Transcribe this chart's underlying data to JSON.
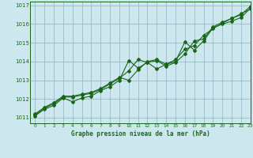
{
  "title": "Graphe pression niveau de la mer (hPa)",
  "bg_color": "#cce8ee",
  "grid_color": "#99bbcc",
  "line_color": "#1a6618",
  "xlim": [
    -0.5,
    23
  ],
  "ylim": [
    1010.7,
    1017.2
  ],
  "xticks": [
    0,
    1,
    2,
    3,
    4,
    5,
    6,
    7,
    8,
    9,
    10,
    11,
    12,
    13,
    14,
    15,
    16,
    17,
    18,
    19,
    20,
    21,
    22,
    23
  ],
  "yticks": [
    1011,
    1012,
    1013,
    1014,
    1015,
    1016,
    1017
  ],
  "series1_x": [
    0,
    1,
    2,
    3,
    4,
    5,
    6,
    7,
    8,
    9,
    10,
    11,
    12,
    13,
    14,
    15,
    16,
    17,
    18,
    19,
    20,
    21,
    22,
    23
  ],
  "series1_y": [
    1011.1,
    1011.45,
    1011.65,
    1012.05,
    1011.85,
    1012.05,
    1012.15,
    1012.45,
    1012.65,
    1013.0,
    1014.05,
    1013.65,
    1013.95,
    1013.6,
    1013.85,
    1014.0,
    1015.05,
    1014.6,
    1015.1,
    1015.8,
    1016.0,
    1016.15,
    1016.35,
    1016.85
  ],
  "series2_x": [
    0,
    1,
    2,
    3,
    4,
    5,
    6,
    7,
    8,
    9,
    10,
    11,
    12,
    13,
    14,
    15,
    16,
    17,
    18,
    19,
    20,
    21,
    22,
    23
  ],
  "series2_y": [
    1011.15,
    1011.5,
    1011.75,
    1012.1,
    1012.1,
    1012.2,
    1012.3,
    1012.5,
    1012.8,
    1013.1,
    1013.5,
    1014.1,
    1013.95,
    1014.05,
    1013.75,
    1013.95,
    1014.4,
    1015.1,
    1015.2,
    1015.85,
    1016.1,
    1016.3,
    1016.55,
    1016.8
  ],
  "series3_x": [
    0,
    1,
    2,
    3,
    4,
    5,
    6,
    7,
    8,
    9,
    10,
    11,
    12,
    13,
    14,
    15,
    16,
    17,
    18,
    19,
    20,
    21,
    22,
    23
  ],
  "series3_y": [
    1011.2,
    1011.55,
    1011.8,
    1012.15,
    1012.15,
    1012.25,
    1012.35,
    1012.55,
    1012.85,
    1013.15,
    1013.0,
    1013.55,
    1014.0,
    1014.1,
    1013.85,
    1014.1,
    1014.65,
    1014.85,
    1015.4,
    1015.75,
    1016.05,
    1016.3,
    1016.5,
    1016.95
  ],
  "figsize": [
    3.2,
    2.0
  ],
  "dpi": 100
}
